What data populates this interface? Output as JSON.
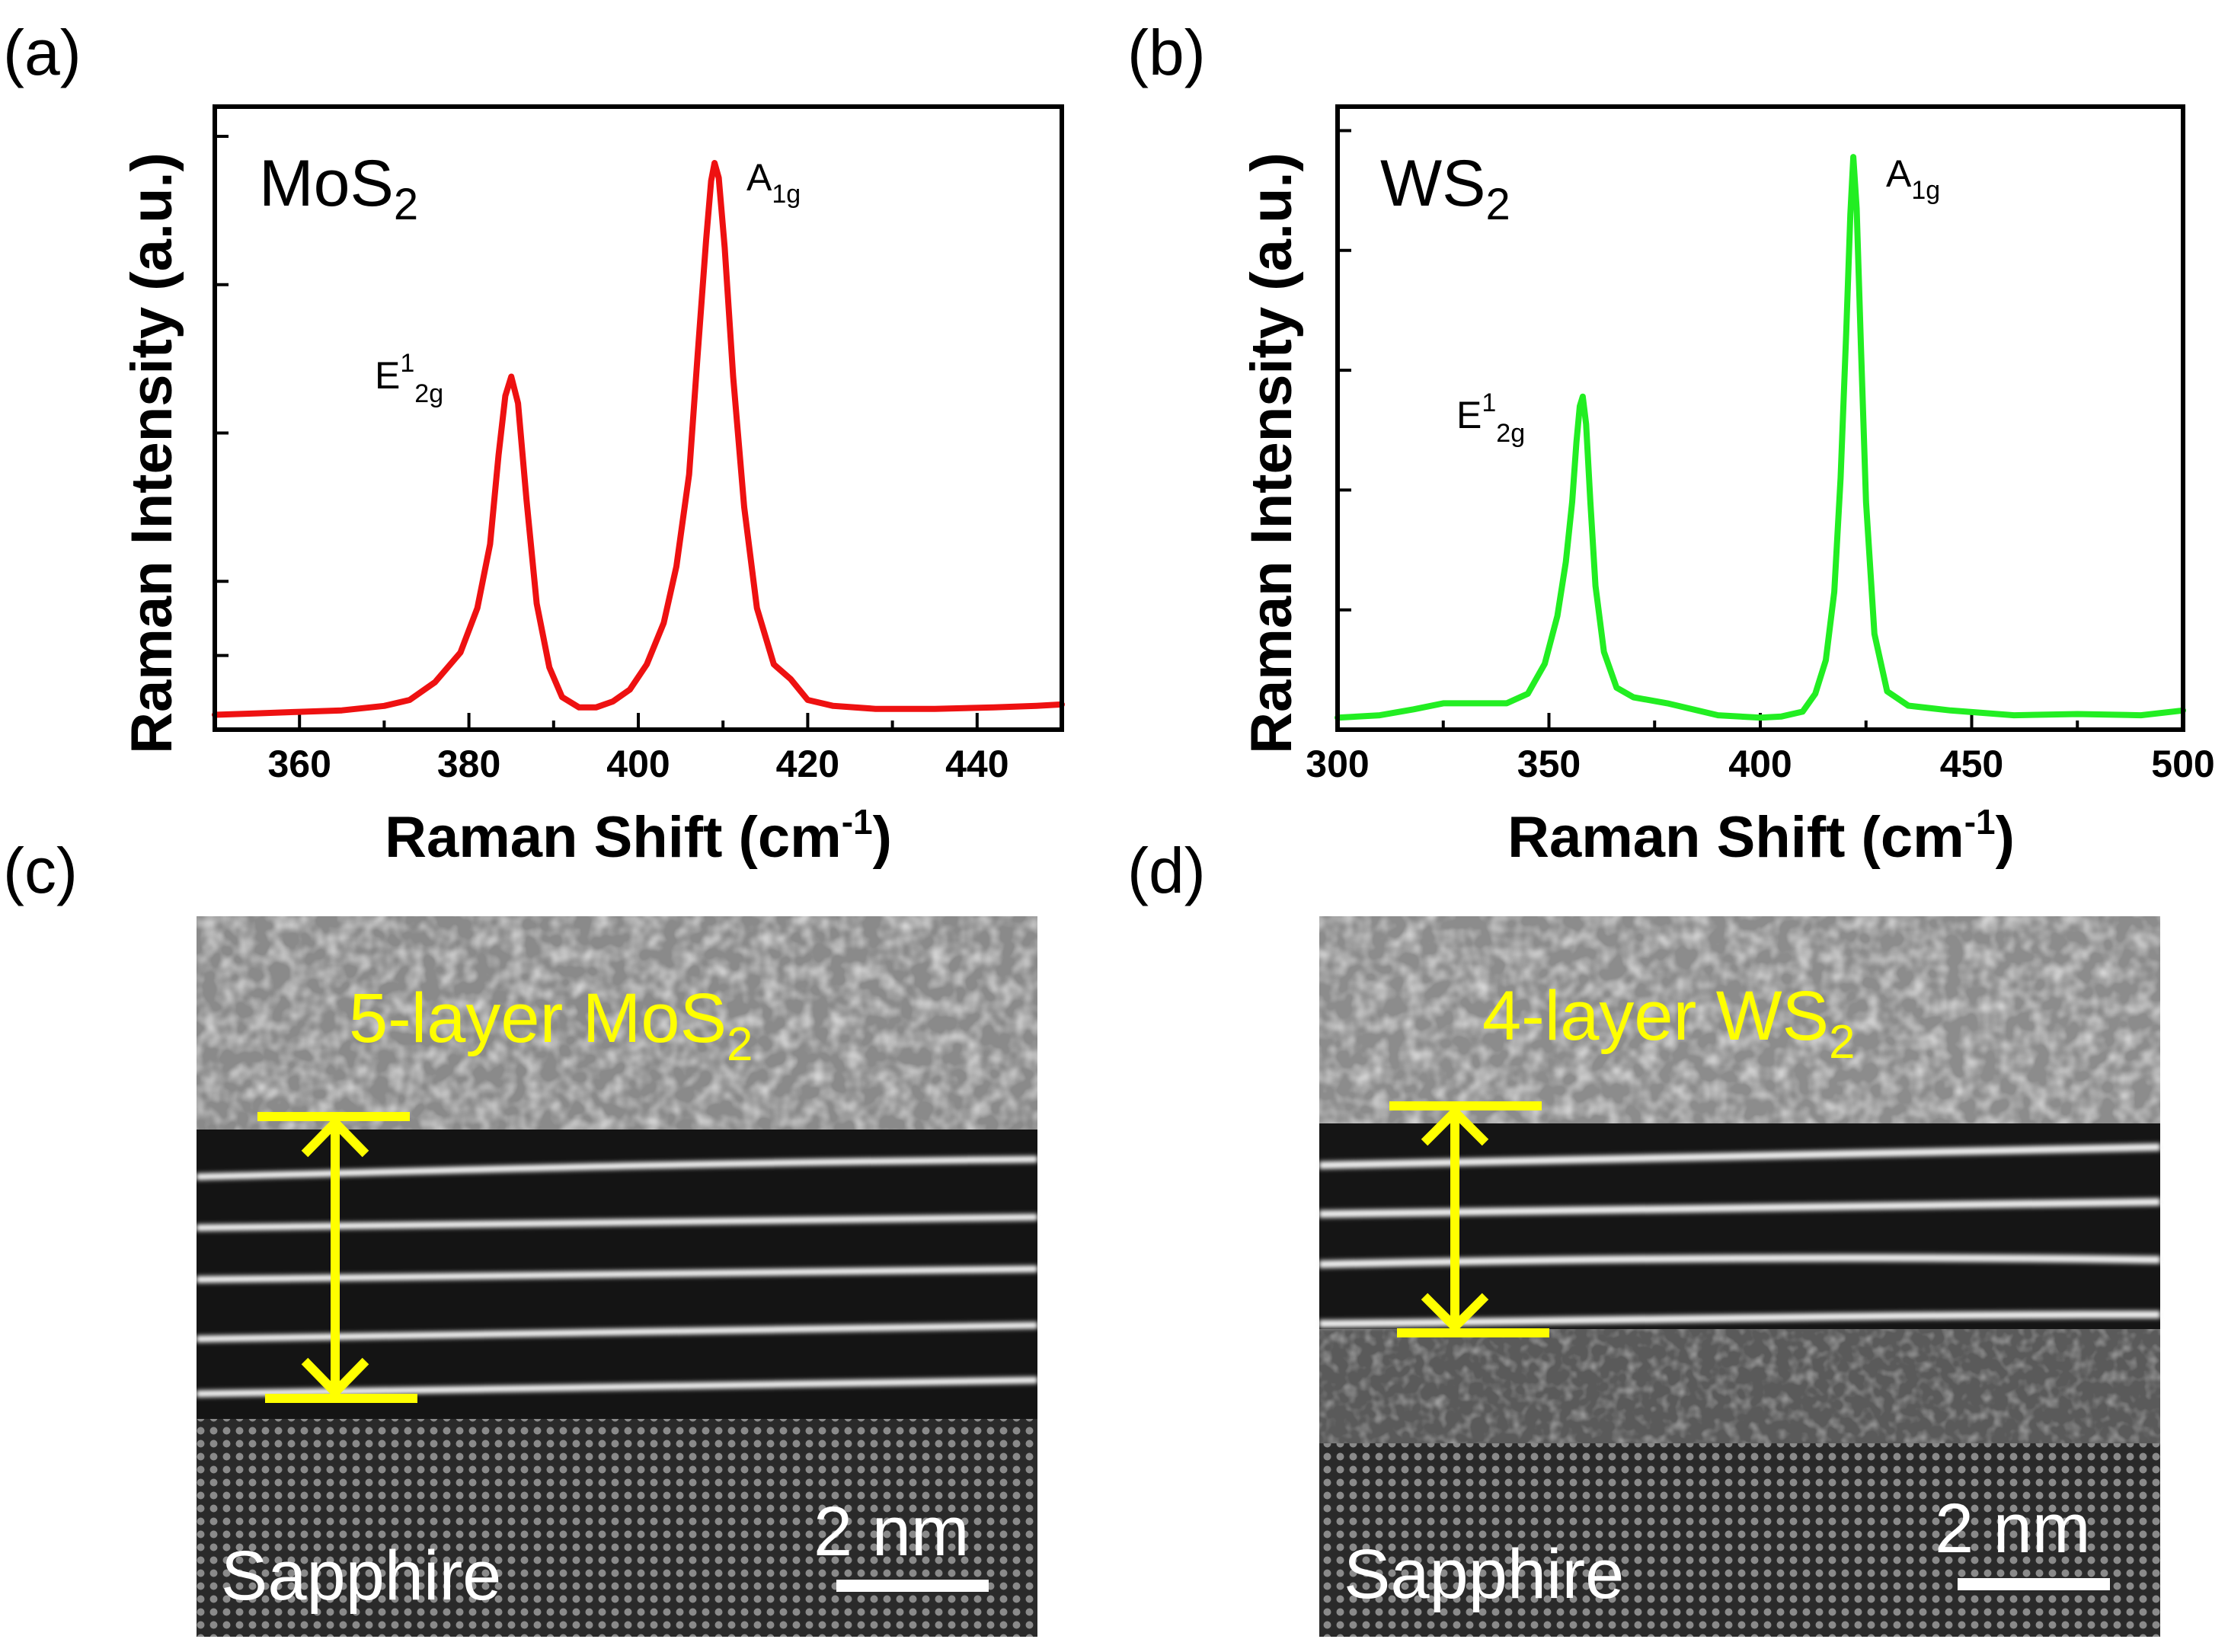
{
  "panels": {
    "a": {
      "letter": "(a)"
    },
    "b": {
      "letter": "(b)"
    },
    "c": {
      "letter": "(c)",
      "title_main": "5-layer MoS",
      "title_sub": "2",
      "substrate": "Sapphire",
      "scale_bar": "2 nm",
      "layer_count": 5
    },
    "d": {
      "letter": "(d)",
      "title_main": "4-layer WS",
      "title_sub": "2",
      "substrate": "Sapphire",
      "scale_bar": "2 nm",
      "layer_count": 4
    }
  },
  "colors": {
    "mos2_line": "#ee1111",
    "ws2_line": "#22ee22",
    "annotation": "#ffff00"
  },
  "chart_data": [
    {
      "id": "a",
      "type": "line",
      "material_main": "MoS",
      "material_sub": "2",
      "xlabel_main": "Raman Shift (cm",
      "xlabel_sup": "-1",
      "xlabel_end": ")",
      "ylabel": "Raman Intensity (a.u.)",
      "xlim": [
        350,
        450
      ],
      "ylim": [
        0,
        4.2
      ],
      "xticks": [
        360,
        380,
        400,
        420,
        440
      ],
      "x_minor_step": 10,
      "y_ticks": [
        0.5,
        1.0,
        2.0,
        3.0,
        4.0
      ],
      "y_tick_labels_shown": false,
      "peaks": [
        {
          "name": "E",
          "sup": "1",
          "sub": "2g",
          "x": 385.0,
          "y": 2.38
        },
        {
          "name": "A",
          "sup": "",
          "sub": "1g",
          "x": 409.0,
          "y": 3.82
        }
      ],
      "series": [
        {
          "name": "MoS2",
          "color": "#ee1111",
          "x": [
            350,
            355,
            360,
            365,
            370,
            373,
            376,
            379,
            381,
            382.5,
            383.5,
            384.3,
            385,
            385.8,
            386.8,
            388,
            389.5,
            391,
            393,
            395,
            397,
            399,
            401,
            403,
            404.5,
            406,
            407,
            408,
            408.6,
            409,
            409.5,
            410.2,
            411.2,
            412.5,
            414,
            416,
            418,
            420,
            423,
            428,
            435,
            442,
            447,
            450
          ],
          "y": [
            0.1,
            0.11,
            0.12,
            0.13,
            0.16,
            0.2,
            0.32,
            0.52,
            0.82,
            1.25,
            1.85,
            2.25,
            2.38,
            2.2,
            1.55,
            0.85,
            0.42,
            0.22,
            0.15,
            0.15,
            0.19,
            0.27,
            0.44,
            0.72,
            1.1,
            1.72,
            2.52,
            3.3,
            3.7,
            3.82,
            3.72,
            3.25,
            2.38,
            1.5,
            0.82,
            0.44,
            0.34,
            0.2,
            0.16,
            0.14,
            0.14,
            0.15,
            0.16,
            0.17
          ]
        }
      ]
    },
    {
      "id": "b",
      "type": "line",
      "material_main": "WS",
      "material_sub": "2",
      "xlabel_main": "Raman Shift (cm",
      "xlabel_sup": "-1",
      "xlabel_end": ")",
      "ylabel": "Raman Intensity (a.u.)",
      "xlim": [
        300,
        500
      ],
      "ylim": [
        0,
        5.2
      ],
      "xticks": [
        300,
        350,
        400,
        450,
        500
      ],
      "x_minor_step": 25,
      "y_ticks": [
        1.0,
        2.0,
        3.0,
        4.0,
        5.0
      ],
      "y_tick_labels_shown": false,
      "peaks": [
        {
          "name": "E",
          "sup": "1",
          "sub": "2g",
          "x": 358.0,
          "y": 2.78
        },
        {
          "name": "A",
          "sup": "",
          "sub": "1g",
          "x": 422.0,
          "y": 4.78
        }
      ],
      "series": [
        {
          "name": "WS2",
          "color": "#22ee22",
          "x": [
            300,
            310,
            318,
            325,
            332,
            340,
            345,
            349,
            352,
            354,
            355.5,
            356.5,
            357.3,
            358,
            358.8,
            359.8,
            361,
            363,
            366,
            370,
            378,
            390,
            400,
            405,
            410,
            413,
            415.5,
            417.5,
            419,
            420.3,
            421.3,
            422,
            422.8,
            423.8,
            425,
            427,
            430,
            435,
            445,
            460,
            475,
            490,
            500
          ],
          "y": [
            0.1,
            0.12,
            0.17,
            0.22,
            0.22,
            0.22,
            0.3,
            0.55,
            0.95,
            1.4,
            1.9,
            2.4,
            2.7,
            2.78,
            2.55,
            1.9,
            1.2,
            0.65,
            0.35,
            0.27,
            0.22,
            0.12,
            0.1,
            0.11,
            0.15,
            0.3,
            0.58,
            1.15,
            2.1,
            3.3,
            4.3,
            4.78,
            4.35,
            3.2,
            1.9,
            0.8,
            0.32,
            0.2,
            0.16,
            0.12,
            0.13,
            0.12,
            0.16
          ]
        }
      ]
    }
  ]
}
